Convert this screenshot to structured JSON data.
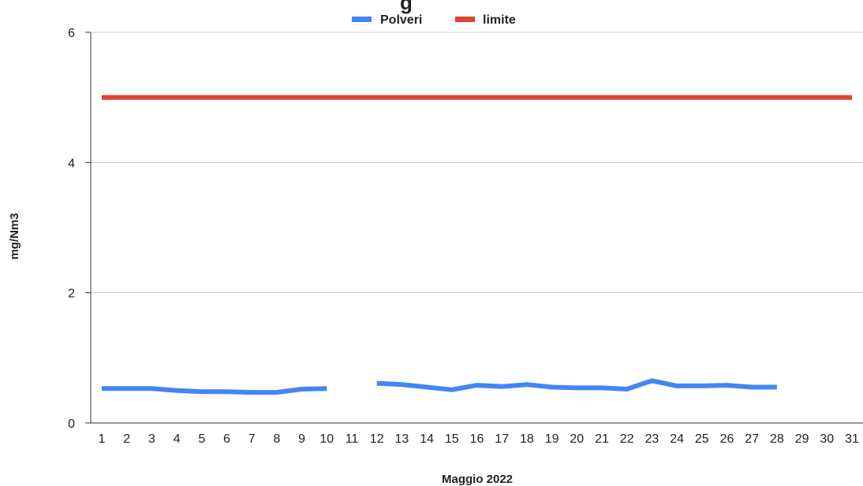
{
  "chart_data": {
    "type": "line",
    "title": "g",
    "xlabel": "Maggio 2022",
    "ylabel": "mg/Nm3",
    "categories": [
      "1",
      "2",
      "3",
      "4",
      "5",
      "6",
      "7",
      "8",
      "9",
      "10",
      "11",
      "12",
      "13",
      "14",
      "15",
      "16",
      "17",
      "18",
      "19",
      "20",
      "21",
      "22",
      "23",
      "24",
      "25",
      "26",
      "27",
      "28",
      "29",
      "30",
      "31"
    ],
    "ylim": [
      0,
      6
    ],
    "yticks": [
      "0",
      "2",
      "4",
      "6"
    ],
    "grid": true,
    "legend_position": "top",
    "series": [
      {
        "name": "Polveri",
        "color": "#4285f4",
        "values": [
          0.53,
          0.53,
          0.53,
          0.5,
          0.48,
          0.48,
          0.47,
          0.47,
          0.52,
          0.53,
          null,
          0.61,
          0.59,
          0.55,
          0.51,
          0.58,
          0.56,
          0.59,
          0.55,
          0.54,
          0.54,
          0.52,
          0.65,
          0.57,
          0.57,
          0.58,
          0.55,
          0.55,
          null,
          null,
          null
        ]
      },
      {
        "name": "limite",
        "color": "#db4437",
        "values": [
          5,
          5,
          5,
          5,
          5,
          5,
          5,
          5,
          5,
          5,
          5,
          5,
          5,
          5,
          5,
          5,
          5,
          5,
          5,
          5,
          5,
          5,
          5,
          5,
          5,
          5,
          5,
          5,
          5,
          5,
          5
        ]
      }
    ]
  }
}
